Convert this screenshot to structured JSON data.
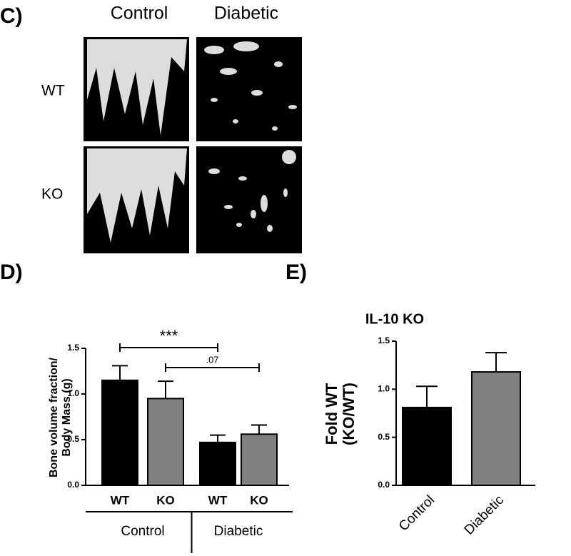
{
  "panel_c": {
    "label": "C)",
    "columns": [
      "Control",
      "Diabetic"
    ],
    "rows": [
      "WT",
      "KO"
    ]
  },
  "chart_data": [
    {
      "type": "bar",
      "panel_label": "D)",
      "ylabel": [
        "Bone volume fraction/",
        "Body Mass (g)"
      ],
      "categories": [
        "WT",
        "KO",
        "WT",
        "KO"
      ],
      "groups": [
        "Control",
        "Diabetic"
      ],
      "values": [
        1.15,
        0.95,
        0.47,
        0.56
      ],
      "errors": [
        0.16,
        0.19,
        0.08,
        0.1
      ],
      "colors": [
        "#000000",
        "#808080",
        "#000000",
        "#808080"
      ],
      "ylim": [
        0,
        1.5
      ],
      "yticks": [
        {
          "value": 0,
          "label": "0.0"
        },
        {
          "value": 0.5,
          "label": "0.5"
        },
        {
          "value": 1,
          "label": "1.0"
        },
        {
          "value": 1.5,
          "label": "1.5"
        }
      ],
      "annotations": [
        {
          "text": "***",
          "from": 0,
          "to": 2
        },
        {
          "text": ".07",
          "from": 1,
          "to": 3
        }
      ]
    },
    {
      "type": "bar",
      "panel_label": "E)",
      "title": "IL-10 KO",
      "ylabel": [
        "Fold WT",
        "(KO/WT)"
      ],
      "categories": [
        "Control",
        "Diabetic"
      ],
      "values": [
        0.81,
        1.18
      ],
      "errors": [
        0.22,
        0.2
      ],
      "colors": [
        "#000000",
        "#808080"
      ],
      "ylim": [
        0,
        1.5
      ],
      "yticks": [
        {
          "value": 0,
          "label": "0.0"
        },
        {
          "value": 0.5,
          "label": "0.5"
        },
        {
          "value": 1,
          "label": "1.0"
        },
        {
          "value": 1.5,
          "label": "1.5"
        }
      ]
    }
  ]
}
